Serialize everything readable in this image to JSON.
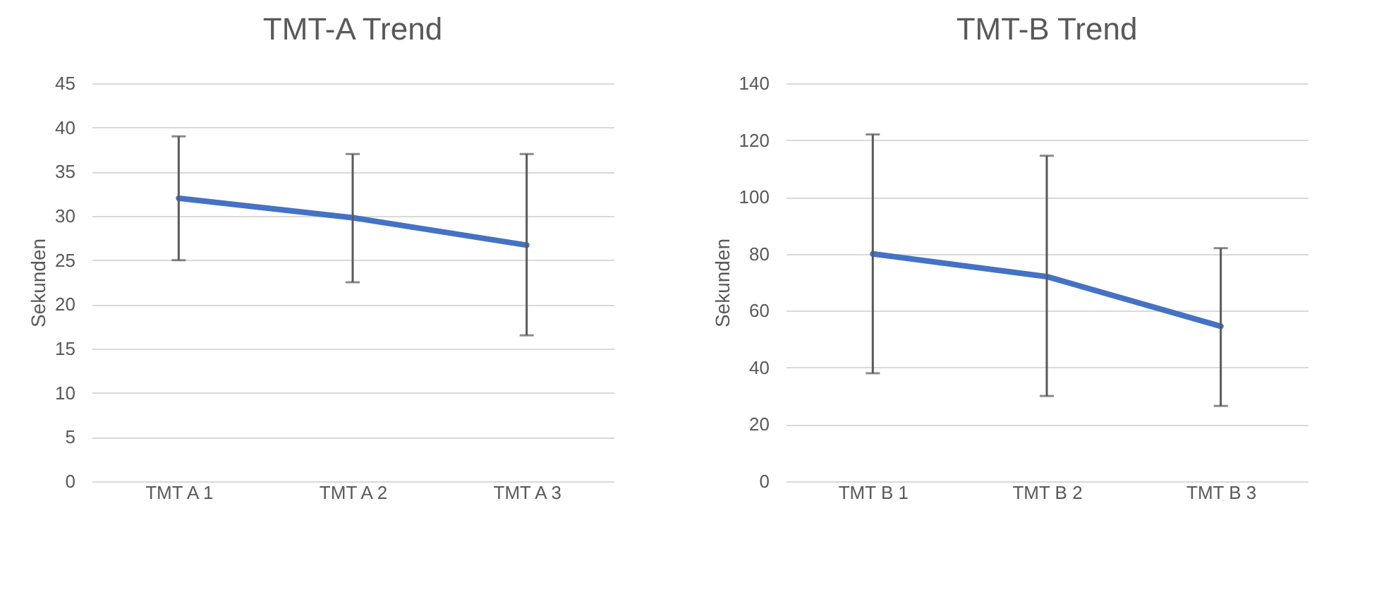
{
  "chart_data": [
    {
      "type": "line",
      "title": "TMT-A Trend",
      "ylabel": "Sekunden",
      "categories": [
        "TMT A 1",
        "TMT A 2",
        "TMT A 3"
      ],
      "series": [
        {
          "color": "#4472c4",
          "values": [
            32,
            29.8,
            26.7
          ],
          "errors": [
            [
              25,
              39
            ],
            [
              22.5,
              37
            ],
            [
              16.5,
              37
            ]
          ]
        }
      ],
      "ylim": [
        0,
        45
      ],
      "yticks": [
        0,
        5,
        10,
        15,
        20,
        25,
        30,
        35,
        40,
        45
      ],
      "grid": "y",
      "marker": "none",
      "line_style": "solid"
    },
    {
      "type": "line",
      "title": "TMT-B Trend",
      "ylabel": "Sekunden",
      "categories": [
        "TMT B 1",
        "TMT B 2",
        "TMT B 3"
      ],
      "series": [
        {
          "color": "#4472c4",
          "values": [
            80,
            72,
            54.5
          ],
          "errors": [
            [
              38,
              122
            ],
            [
              30,
              114.5
            ],
            [
              26.5,
              82
            ]
          ]
        }
      ],
      "ylim": [
        0,
        140
      ],
      "yticks": [
        0,
        20,
        40,
        60,
        80,
        100,
        120,
        140
      ],
      "grid": "y",
      "marker": "none",
      "line_style": "solid"
    }
  ]
}
